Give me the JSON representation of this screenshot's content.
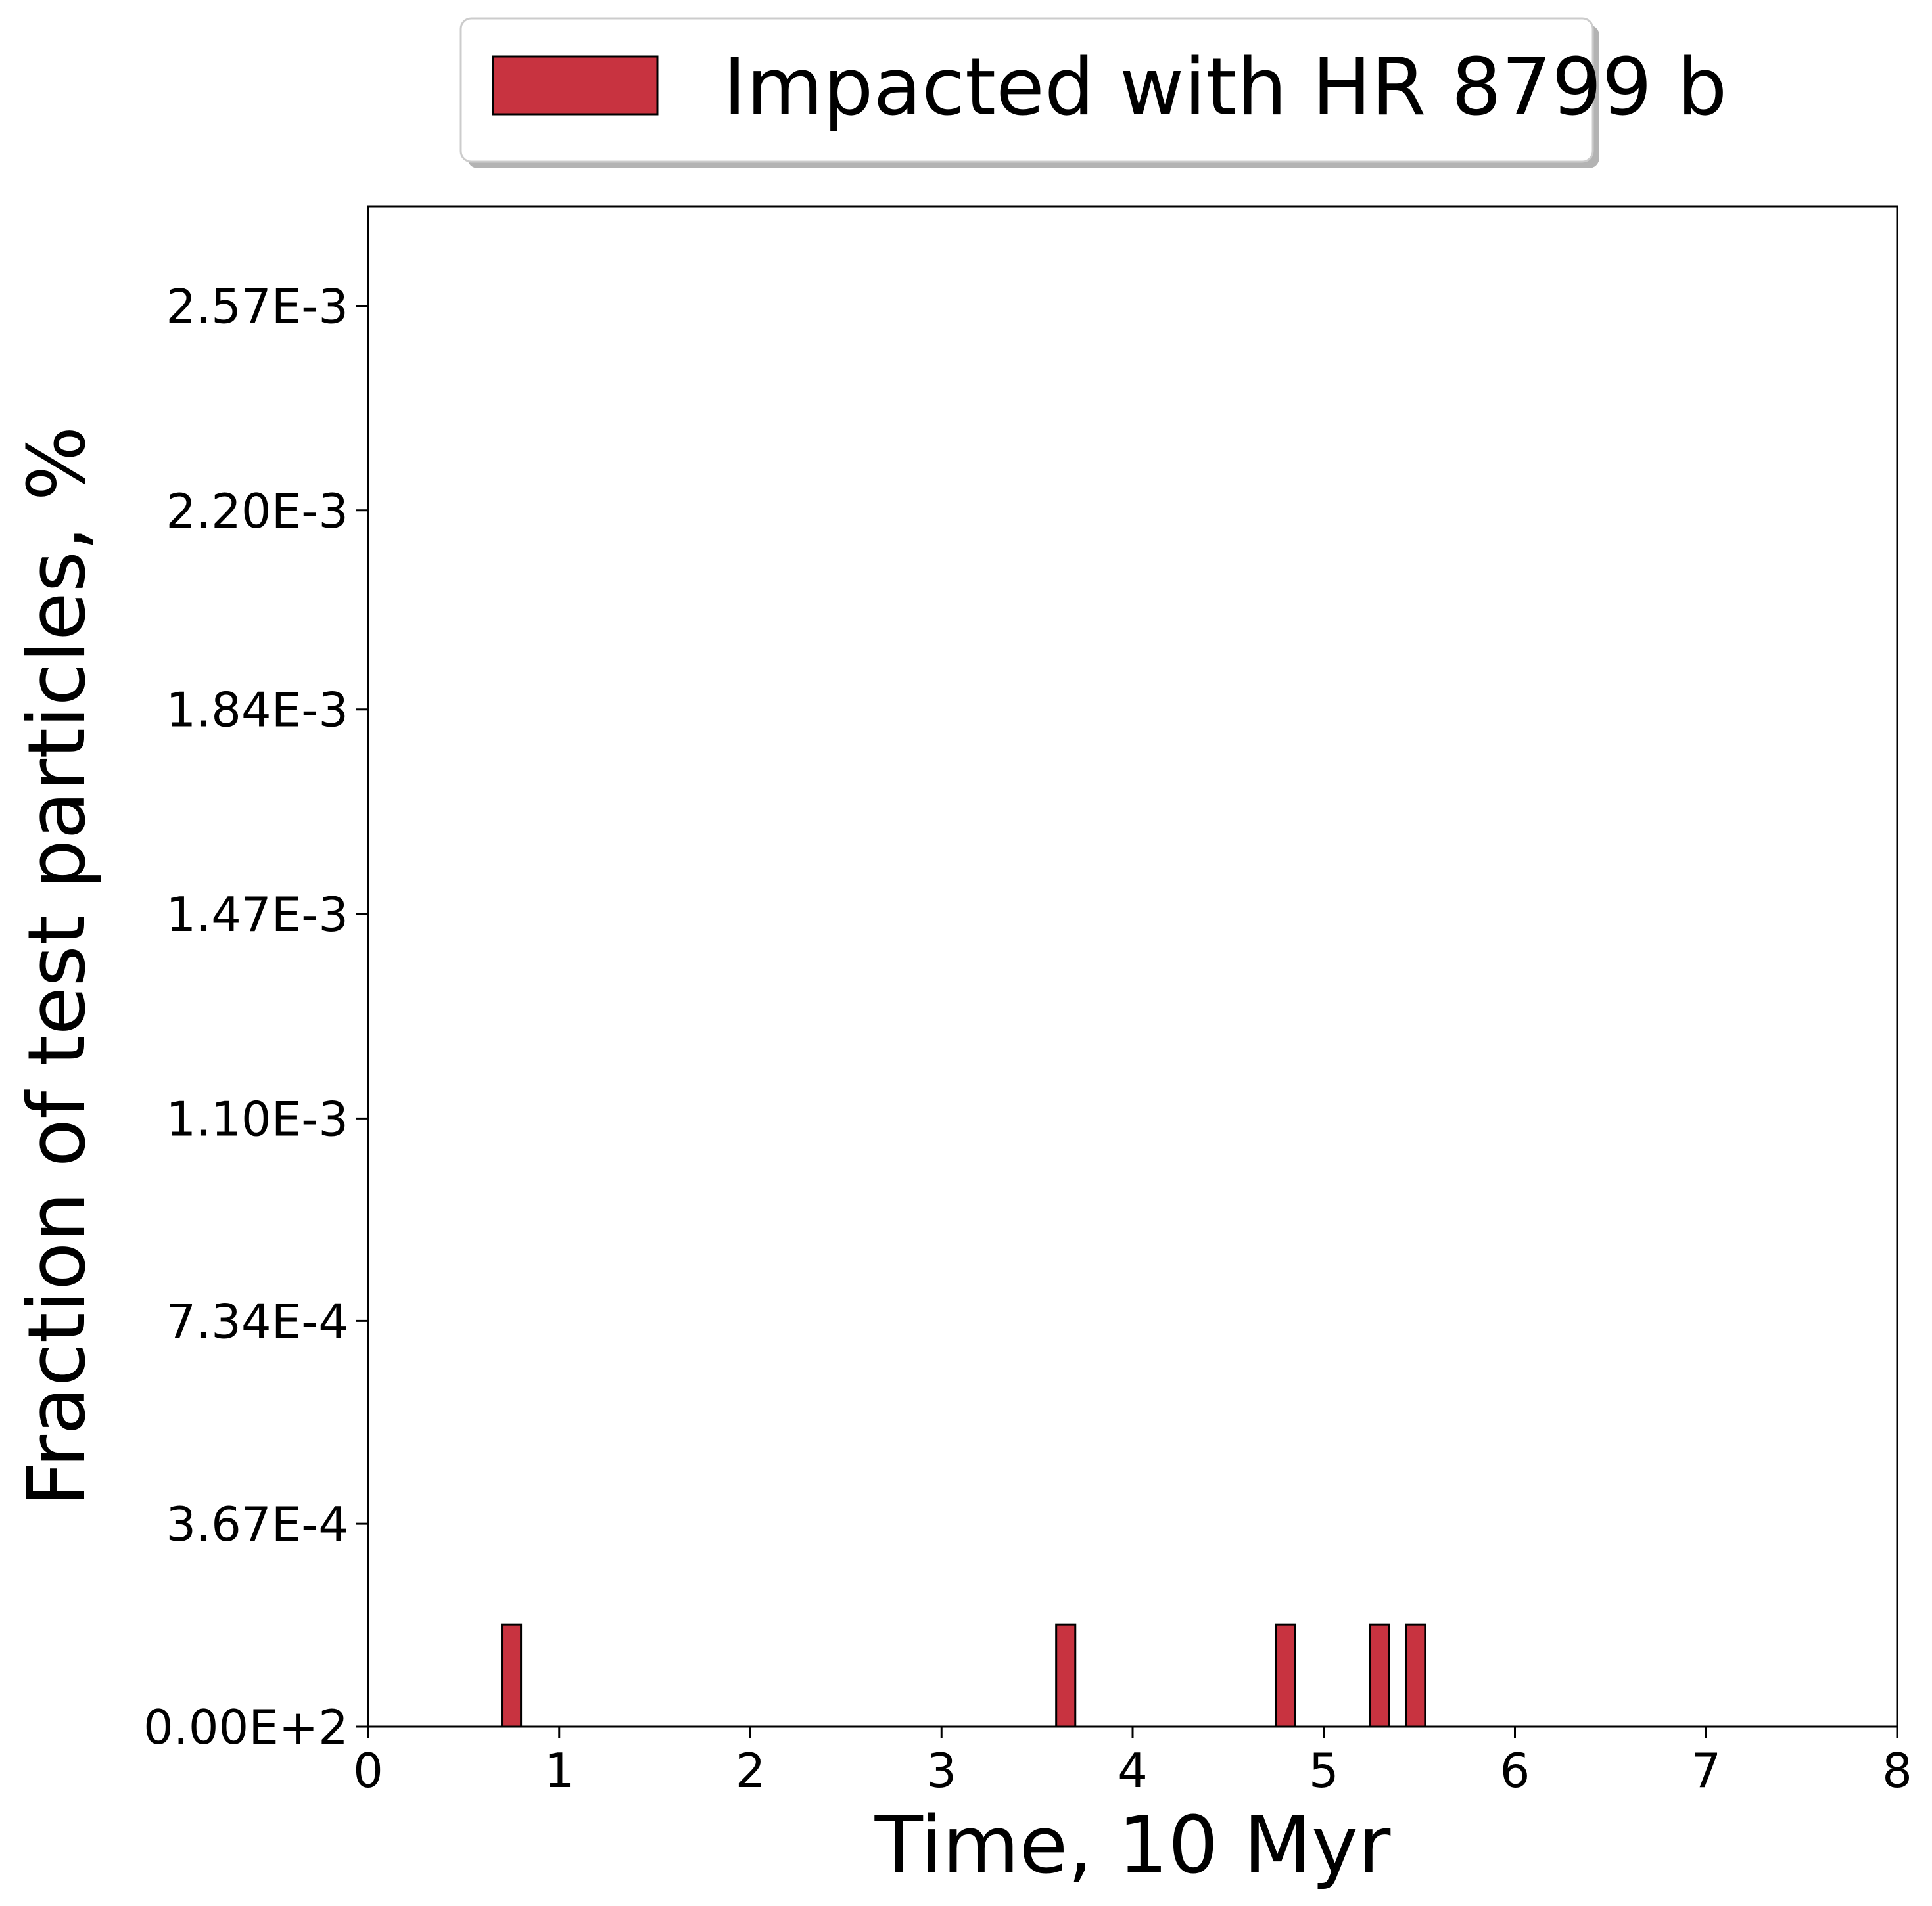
{
  "chart_data": {
    "type": "bar",
    "xlabel": "Time, 10 Myr",
    "ylabel": "Fraction of test particles, %",
    "xlim": [
      0,
      8
    ],
    "ylim": [
      0,
      0.00275
    ],
    "x_ticks": [
      0,
      1,
      2,
      3,
      4,
      5,
      6,
      7,
      8
    ],
    "x_tick_labels": [
      "0",
      "1",
      "2",
      "3",
      "4",
      "5",
      "6",
      "7",
      "8"
    ],
    "y_ticks": [
      0,
      0.000367,
      0.000734,
      0.0011,
      0.00147,
      0.00184,
      0.0022,
      0.00257
    ],
    "y_tick_labels": [
      "0.00E+2",
      "3.67E-4",
      "7.34E-4",
      "1.10E-3",
      "1.47E-3",
      "1.84E-3",
      "2.20E-3",
      "2.57E-3"
    ],
    "bin_width": 0.1,
    "series": [
      {
        "name": "Impacted with HR 8799 b",
        "color": "#c83340",
        "bins": [
          {
            "x": 0.7,
            "value": 0.000184
          },
          {
            "x": 3.6,
            "value": 0.000184
          },
          {
            "x": 4.75,
            "value": 0.000184
          },
          {
            "x": 5.24,
            "value": 0.000184
          },
          {
            "x": 5.43,
            "value": 0.000184
          }
        ]
      }
    ],
    "legend_position": "top-center",
    "grid": false
  }
}
